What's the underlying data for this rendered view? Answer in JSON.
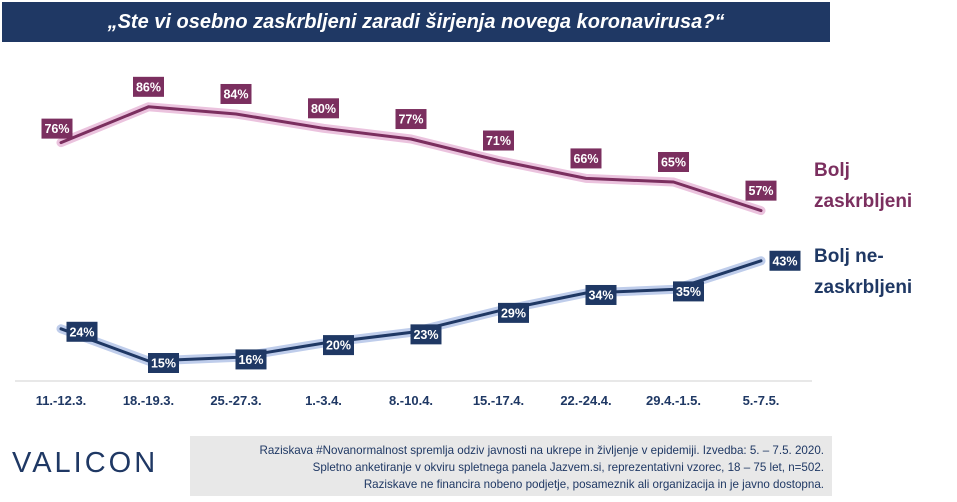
{
  "title": "„Ste vi osebno zaskrbljeni zaradi širjenja novega koronavirusa?“",
  "logo": "VALICON",
  "footnote": {
    "line1": "Raziskava #Novanormalnost spremlja odziv javnosti na ukrepe in življenje v epidemiji. Izvedba: 5. – 7.5. 2020.",
    "line2": "Spletno anketiranje v okviru spletnega panela Jazvem.si, reprezentativni vzorec, 18 – 75 let, n=502.",
    "line3": "Raziskave ne financira nobeno podjetje, posameznik ali organizacija in je javno dostopna."
  },
  "chart_data": {
    "type": "line",
    "categories": [
      "11.-12.3.",
      "18.-19.3.",
      "25.-27.3.",
      "1.-3.4.",
      "8.-10.4.",
      "15.-17.4.",
      "22.-24.4.",
      "29.4.-1.5.",
      "5.-7.5."
    ],
    "ylim": [
      0,
      100
    ],
    "grid": false,
    "series": [
      {
        "name": "Bolj zaskrbljeni",
        "name_lines": [
          "Bolj",
          "zaskrbljeni"
        ],
        "color": "#7b2f5f",
        "glow": "#e8b8d8",
        "values": [
          76,
          86,
          84,
          80,
          77,
          71,
          66,
          65,
          57
        ],
        "labels": [
          "76%",
          "86%",
          "84%",
          "80%",
          "77%",
          "71%",
          "66%",
          "65%",
          "57%"
        ]
      },
      {
        "name": "Bolj ne-zaskrbljeni",
        "name_lines": [
          "Bolj ne-",
          "zaskrbljeni"
        ],
        "color": "#1f3864",
        "glow": "#b4c4e8",
        "values": [
          24,
          15,
          16,
          20,
          23,
          29,
          34,
          35,
          43
        ],
        "labels": [
          "24%",
          "15%",
          "16%",
          "20%",
          "23%",
          "29%",
          "34%",
          "35%",
          "43%"
        ]
      }
    ]
  }
}
